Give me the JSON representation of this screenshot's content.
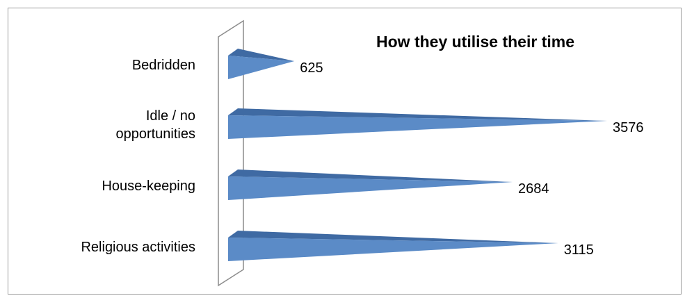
{
  "chart_data": {
    "type": "bar",
    "orientation": "horizontal",
    "title": "How they utilise their time",
    "categories": [
      "Bedridden",
      "Idle / no opportunities",
      "House-keeping",
      "Religious activities"
    ],
    "category_lines": [
      [
        "Bedridden"
      ],
      [
        "Idle / no",
        "opportunities"
      ],
      [
        "House-keeping"
      ],
      [
        "Religious activities"
      ]
    ],
    "values": [
      625,
      3576,
      2684,
      3115
    ],
    "value_labels": [
      "625",
      "3576",
      "2684",
      "3115"
    ],
    "xlim": [
      0,
      3576
    ],
    "grid": false,
    "legend": "none",
    "colors": {
      "bar": "#5b8bc7",
      "bar_top": "#3f6aa3",
      "axis_wall": "#8c8c8c"
    }
  }
}
